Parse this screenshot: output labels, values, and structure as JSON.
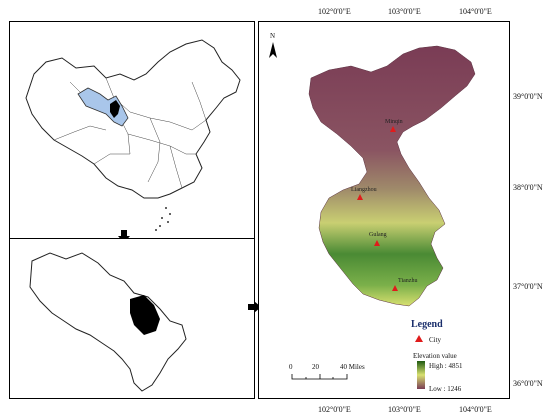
{
  "top_axis": {
    "labels": [
      "102°0'0\"E",
      "103°0'0\"E",
      "104°0'0\"E"
    ]
  },
  "bottom_axis": {
    "labels": [
      "102°0'0\"E",
      "103°0'0\"E",
      "104°0'0\"E"
    ]
  },
  "right_axis": {
    "labels": [
      "39°0'0\"N",
      "38°0'0\"N",
      "37°0'0\"N",
      "36°0'0\"N"
    ]
  },
  "north_arrow": {
    "label": "N"
  },
  "cities": [
    {
      "name": "Minqin"
    },
    {
      "name": "Liangzhou"
    },
    {
      "name": "Gulang"
    },
    {
      "name": "Tianzhu"
    }
  ],
  "legend": {
    "title": "Legend",
    "city_label": "City",
    "elevation_label": "Elevation value",
    "high_label": "High : 4851",
    "low_label": "Low : 1246",
    "colors": {
      "high": "#1f5a12",
      "mid": "#d8e070",
      "low": "#7a3c55",
      "city": "#e01b1b"
    }
  },
  "scale_bar": {
    "ticks": [
      "0",
      "20",
      "40 Miles"
    ]
  }
}
